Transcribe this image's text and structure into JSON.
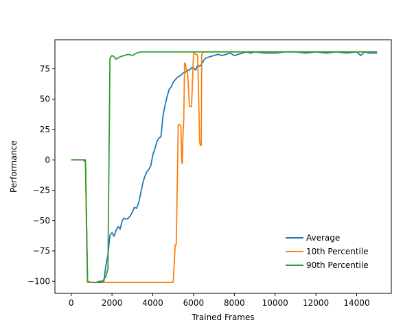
{
  "chart_data": {
    "type": "line",
    "title": "",
    "xlabel": "Trained Frames",
    "ylabel": "Performance",
    "xlim": [
      -800,
      15700
    ],
    "ylim": [
      -110,
      99
    ],
    "xticks": [
      0,
      2000,
      4000,
      6000,
      8000,
      10000,
      12000,
      14000
    ],
    "yticks": [
      -100,
      -75,
      -50,
      -25,
      0,
      25,
      50,
      75
    ],
    "grid": false,
    "legend_position": "lower-right",
    "series": [
      {
        "name": "Average",
        "color": "#1f77b4",
        "x": [
          0,
          600,
          700,
          800,
          1000,
          1200,
          1400,
          1600,
          1700,
          1800,
          1900,
          2000,
          2100,
          2200,
          2300,
          2400,
          2500,
          2600,
          2700,
          2800,
          2900,
          3000,
          3100,
          3200,
          3300,
          3400,
          3500,
          3600,
          3700,
          3800,
          3900,
          4000,
          4100,
          4200,
          4300,
          4400,
          4500,
          4600,
          4700,
          4800,
          4900,
          5000,
          5100,
          5200,
          5300,
          5400,
          5500,
          5600,
          5700,
          5800,
          5900,
          6000,
          6100,
          6200,
          6300,
          6400,
          6500,
          6600,
          6800,
          7000,
          7200,
          7400,
          7600,
          7800,
          8000,
          8200,
          8400,
          8600,
          8800,
          9000,
          9500,
          10000,
          10500,
          11000,
          11500,
          12000,
          12500,
          13000,
          13500,
          14000,
          14200,
          14400,
          14600,
          15000
        ],
        "y": [
          0,
          0,
          -2,
          -101,
          -101,
          -101,
          -100,
          -100,
          -87,
          -78,
          -62,
          -60,
          -63,
          -58,
          -55,
          -57,
          -50,
          -48,
          -49,
          -48,
          -46,
          -43,
          -39,
          -40,
          -36,
          -28,
          -20,
          -14,
          -10,
          -8,
          -5,
          4,
          9,
          15,
          18,
          19,
          36,
          45,
          52,
          58,
          60,
          64,
          66,
          68,
          69,
          70,
          72,
          72,
          74,
          74,
          76,
          76,
          74,
          78,
          77,
          79,
          82,
          84,
          85,
          86,
          87,
          86,
          87,
          88,
          86,
          87,
          88,
          89,
          88,
          89,
          88,
          88,
          89,
          89,
          88,
          89,
          88,
          89,
          88,
          89,
          86,
          89,
          88,
          88
        ]
      },
      {
        "name": "10th Percentile",
        "color": "#ff7f0e",
        "x": [
          0,
          700,
          750,
          800,
          1000,
          2000,
          3000,
          4000,
          5000,
          5100,
          5150,
          5250,
          5300,
          5380,
          5420,
          5450,
          5480,
          5520,
          5560,
          5600,
          5650,
          5700,
          5800,
          5850,
          5900,
          6000,
          6050,
          6100,
          6150,
          6200,
          6300,
          6330,
          6380,
          6400,
          6450,
          6500,
          6600,
          6700,
          7000,
          8000,
          9000,
          10000,
          11000,
          12000,
          13000,
          14000,
          15000
        ],
        "y": [
          0,
          0,
          -60,
          -101,
          -101,
          -101,
          -101,
          -101,
          -101,
          -70,
          -70,
          29,
          29,
          28,
          -2,
          -3,
          20,
          34,
          80,
          79,
          74,
          74,
          44,
          44,
          44,
          88,
          88,
          87,
          87,
          86,
          15,
          12,
          12,
          87,
          88,
          89,
          89,
          89,
          89,
          89,
          89,
          89,
          89,
          89,
          89,
          89,
          89
        ]
      },
      {
        "name": "90th Percentile",
        "color": "#2ca02c",
        "x": [
          0,
          600,
          700,
          800,
          1000,
          1200,
          1500,
          1700,
          1800,
          1900,
          2000,
          2100,
          2200,
          2400,
          2600,
          2800,
          3000,
          3200,
          3400,
          3600,
          4000,
          5000,
          6000,
          7000,
          8000,
          10000,
          12000,
          14000,
          15000
        ],
        "y": [
          0,
          0,
          0,
          -100,
          -101,
          -101,
          -101,
          -96,
          -90,
          84,
          86,
          85,
          83,
          85,
          86,
          87,
          86,
          88,
          89,
          89,
          89,
          89,
          89,
          89,
          89,
          89,
          89,
          89,
          89
        ]
      }
    ]
  }
}
